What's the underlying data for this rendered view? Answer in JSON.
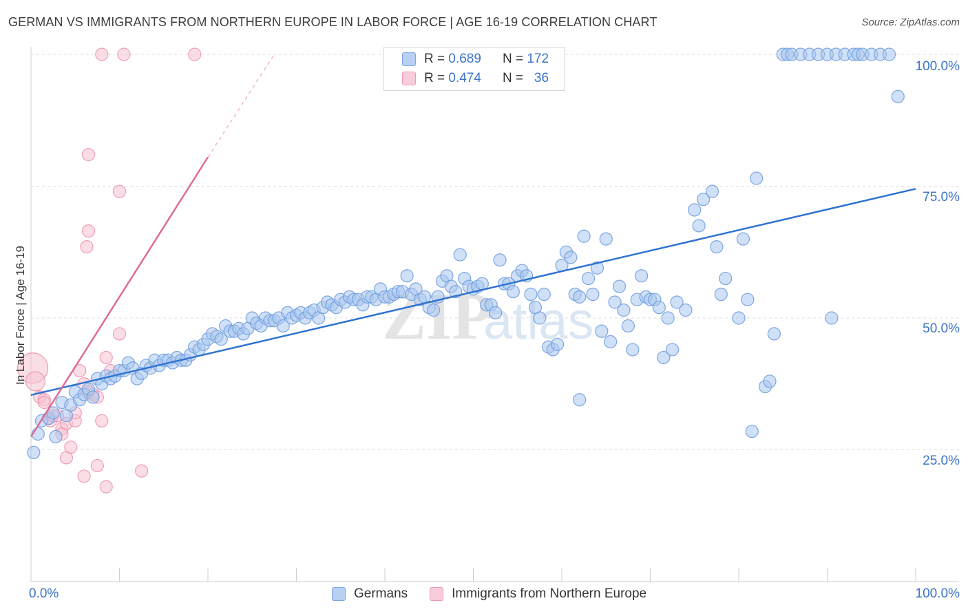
{
  "title": "GERMAN VS IMMIGRANTS FROM NORTHERN EUROPE IN LABOR FORCE | AGE 16-19 CORRELATION CHART",
  "source": "Source: ZipAtlas.com",
  "watermark": "ZIPatlas",
  "colors": {
    "blue_fill": "#a9c7ef",
    "blue_stroke": "#6f9de0",
    "blue_line": "#3073d1",
    "pink_fill": "#f6c2d2",
    "pink_stroke": "#ee92ae",
    "pink_line": "#e06a94",
    "axis_label": "#3a74c9",
    "grid": "#dddddd"
  },
  "legend": {
    "rows": [
      {
        "r_label": "R =",
        "r_value": "0.689",
        "n_label": "N =",
        "n_value": "172"
      },
      {
        "r_label": "R =",
        "r_value": "0.474",
        "n_label": "N =",
        "n_value": "36"
      }
    ]
  },
  "chart_data": {
    "type": "scatter",
    "ylabel": "In Labor Force | Age 16-19",
    "xlim": [
      0,
      100
    ],
    "ylim": [
      0,
      105
    ],
    "x_tick_labels": [
      "0.0%",
      "100.0%"
    ],
    "y_tick_labels": [
      "25.0%",
      "50.0%",
      "75.0%",
      "100.0%"
    ],
    "y_ticks": [
      25,
      50,
      75,
      100
    ],
    "grid": "horizontal dashed",
    "legend_position": "bottom-center",
    "series": [
      {
        "name": "Germans",
        "color": "blue",
        "trendline": {
          "x0": 0,
          "y0": 35.4,
          "x1": 100,
          "y1": 74.5
        },
        "points": [
          [
            0.3,
            24.5
          ],
          [
            0.8,
            28
          ],
          [
            1.2,
            30.5
          ],
          [
            2,
            31
          ],
          [
            2.5,
            32
          ],
          [
            2.8,
            27.5
          ],
          [
            3.5,
            34
          ],
          [
            4,
            31.5
          ],
          [
            4.5,
            33.5
          ],
          [
            5,
            36
          ],
          [
            5.5,
            34.5
          ],
          [
            6,
            35.5
          ],
          [
            6.5,
            36.5
          ],
          [
            7,
            35
          ],
          [
            7.5,
            38.5
          ],
          [
            8,
            37.5
          ],
          [
            8.5,
            39
          ],
          [
            9,
            38.5
          ],
          [
            9.5,
            39
          ],
          [
            10,
            40
          ],
          [
            10.5,
            40
          ],
          [
            11,
            41.5
          ],
          [
            11.5,
            40.5
          ],
          [
            12,
            38.5
          ],
          [
            12.5,
            39.5
          ],
          [
            13,
            41
          ],
          [
            13.5,
            40.5
          ],
          [
            14,
            42
          ],
          [
            14.5,
            41
          ],
          [
            15,
            42
          ],
          [
            15.5,
            42
          ],
          [
            16,
            41.5
          ],
          [
            16.5,
            42.5
          ],
          [
            17,
            42
          ],
          [
            17.5,
            42
          ],
          [
            18,
            43
          ],
          [
            18.5,
            44.5
          ],
          [
            19,
            44
          ],
          [
            19.5,
            45
          ],
          [
            20,
            46
          ],
          [
            20.5,
            47
          ],
          [
            21,
            46.5
          ],
          [
            21.5,
            46
          ],
          [
            22,
            48.5
          ],
          [
            22.5,
            47.5
          ],
          [
            23,
            47.5
          ],
          [
            23.5,
            48
          ],
          [
            24,
            47
          ],
          [
            24.5,
            48
          ],
          [
            25,
            50
          ],
          [
            25.5,
            49
          ],
          [
            26,
            48.5
          ],
          [
            26.5,
            50
          ],
          [
            27,
            49.5
          ],
          [
            27.5,
            49.5
          ],
          [
            28,
            50
          ],
          [
            28.5,
            48.5
          ],
          [
            29,
            51
          ],
          [
            29.5,
            50
          ],
          [
            30,
            50.5
          ],
          [
            30.5,
            51
          ],
          [
            31,
            50
          ],
          [
            31.5,
            51
          ],
          [
            32,
            51.5
          ],
          [
            32.5,
            50
          ],
          [
            33,
            52
          ],
          [
            33.5,
            53
          ],
          [
            34,
            52.5
          ],
          [
            34.5,
            52
          ],
          [
            35,
            53.5
          ],
          [
            35.5,
            53
          ],
          [
            36,
            54
          ],
          [
            36.5,
            53.5
          ],
          [
            37,
            53.5
          ],
          [
            37.5,
            52.5
          ],
          [
            38,
            54
          ],
          [
            38.5,
            54
          ],
          [
            39,
            53.5
          ],
          [
            39.5,
            55.5
          ],
          [
            40,
            54
          ],
          [
            40.5,
            54
          ],
          [
            41,
            54.5
          ],
          [
            41.5,
            55
          ],
          [
            42,
            55
          ],
          [
            42.5,
            58
          ],
          [
            43,
            54.5
          ],
          [
            43.5,
            55.5
          ],
          [
            44,
            53.5
          ],
          [
            44.5,
            54
          ],
          [
            45,
            52
          ],
          [
            45.5,
            51.5
          ],
          [
            46,
            54
          ],
          [
            46.5,
            57
          ],
          [
            47,
            58
          ],
          [
            47.5,
            56
          ],
          [
            48,
            55
          ],
          [
            48.5,
            62
          ],
          [
            49,
            57.5
          ],
          [
            49.5,
            56
          ],
          [
            50,
            55.5
          ],
          [
            50.5,
            56
          ],
          [
            51,
            56.5
          ],
          [
            51.5,
            52.5
          ],
          [
            52,
            52.5
          ],
          [
            52.5,
            51
          ],
          [
            53,
            61
          ],
          [
            53.5,
            56.5
          ],
          [
            54,
            56.5
          ],
          [
            54.5,
            55
          ],
          [
            55,
            58
          ],
          [
            55.5,
            59
          ],
          [
            56,
            58
          ],
          [
            56.5,
            54.5
          ],
          [
            57,
            52
          ],
          [
            57.5,
            50
          ],
          [
            58,
            54.5
          ],
          [
            58.5,
            44.5
          ],
          [
            59,
            44
          ],
          [
            59.5,
            45
          ],
          [
            60,
            60
          ],
          [
            60.5,
            62.5
          ],
          [
            61,
            61.5
          ],
          [
            61.5,
            54.5
          ],
          [
            62,
            54
          ],
          [
            62.5,
            65.5
          ],
          [
            63,
            57.5
          ],
          [
            63.5,
            54.5
          ],
          [
            64,
            59.5
          ],
          [
            64.5,
            47.5
          ],
          [
            65,
            65
          ],
          [
            65.5,
            45.5
          ],
          [
            66,
            53
          ],
          [
            66.5,
            56
          ],
          [
            67,
            51.5
          ],
          [
            67.5,
            48.5
          ],
          [
            68,
            44
          ],
          [
            68.5,
            53.5
          ],
          [
            69,
            58
          ],
          [
            69.5,
            54
          ],
          [
            70,
            53.5
          ],
          [
            70.5,
            53.5
          ],
          [
            71,
            52
          ],
          [
            71.5,
            42.5
          ],
          [
            72,
            50
          ],
          [
            72.5,
            44
          ],
          [
            73,
            53
          ],
          [
            74,
            51.5
          ],
          [
            75,
            70.5
          ],
          [
            75.5,
            67.5
          ],
          [
            76,
            72.5
          ],
          [
            77,
            74
          ],
          [
            77.5,
            63.5
          ],
          [
            78,
            54.5
          ],
          [
            78.5,
            57.5
          ],
          [
            80,
            50
          ],
          [
            80.5,
            65
          ],
          [
            81,
            53.5
          ],
          [
            81.5,
            28.5
          ],
          [
            82,
            76.5
          ],
          [
            83,
            37
          ],
          [
            83.5,
            38
          ],
          [
            84,
            47
          ],
          [
            85,
            100
          ],
          [
            85.5,
            100
          ],
          [
            86,
            100
          ],
          [
            87,
            100
          ],
          [
            88,
            100
          ],
          [
            89,
            100
          ],
          [
            90,
            100
          ],
          [
            91,
            100
          ],
          [
            92,
            100
          ],
          [
            93,
            100
          ],
          [
            93.5,
            100
          ],
          [
            94,
            100
          ],
          [
            95,
            100
          ],
          [
            96,
            100
          ],
          [
            97,
            100
          ],
          [
            98,
            92
          ],
          [
            90.5,
            50
          ],
          [
            62,
            34.5
          ]
        ]
      },
      {
        "name": "Immigrants from Northern Europe",
        "color": "pink",
        "trendline": {
          "x0": 0,
          "y0": 27.5,
          "x1": 20,
          "y1": 80.5,
          "dash_to_x": 27.5,
          "dash_to_y": 100
        },
        "points": [
          [
            0.2,
            40.5
          ],
          [
            0.5,
            38
          ],
          [
            1,
            35
          ],
          [
            1.5,
            34.5
          ],
          [
            1.5,
            34
          ],
          [
            2,
            31
          ],
          [
            2.2,
            30.5
          ],
          [
            2.5,
            31.5
          ],
          [
            3,
            31.5
          ],
          [
            3.5,
            29
          ],
          [
            3.5,
            28
          ],
          [
            4,
            30
          ],
          [
            4,
            23.5
          ],
          [
            4.5,
            25.5
          ],
          [
            5,
            30.5
          ],
          [
            5,
            32
          ],
          [
            5.5,
            40
          ],
          [
            6,
            37.5
          ],
          [
            6,
            20
          ],
          [
            6.5,
            36
          ],
          [
            7,
            35.5
          ],
          [
            7.5,
            35
          ],
          [
            8,
            30.5
          ],
          [
            8.5,
            42.5
          ],
          [
            8.5,
            18
          ],
          [
            9,
            40
          ],
          [
            10,
            47
          ],
          [
            12.5,
            21
          ],
          [
            7.5,
            22
          ],
          [
            6.5,
            81
          ],
          [
            8,
            100
          ],
          [
            10.5,
            100
          ],
          [
            18.5,
            100
          ],
          [
            10,
            74
          ],
          [
            6.5,
            66.5
          ],
          [
            6.3,
            63.5
          ]
        ]
      }
    ]
  },
  "bottom_legend": [
    {
      "label": "Germans"
    },
    {
      "label": "Immigrants from Northern Europe"
    }
  ]
}
